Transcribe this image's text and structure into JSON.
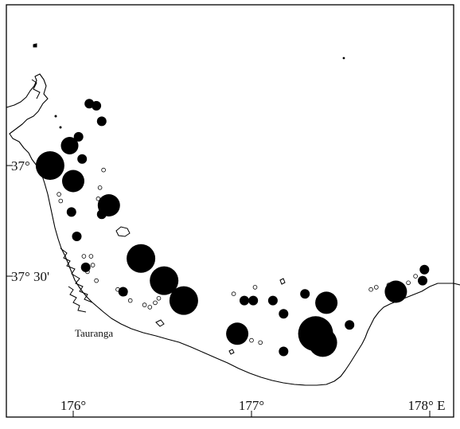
{
  "map": {
    "x_tick_labels": [
      "176°",
      "177°",
      "178° E"
    ],
    "y_tick_labels": [
      "37°",
      "37° 30'"
    ],
    "place_labels": [
      "Tauranga"
    ],
    "legend": null
  },
  "features": {
    "coastline": "Bay of Plenty coastline",
    "islands": "offshore islands"
  },
  "colors": {
    "filled_site": "#000000",
    "open_site": "#ffffff",
    "coast": "#000000",
    "frame": "#000000"
  },
  "sites": {
    "filled": [
      {
        "lon": 175.87,
        "lat": -37.0,
        "size": "xl"
      },
      {
        "lon": 176.0,
        "lat": -37.07,
        "size": "l"
      },
      {
        "lon": 175.98,
        "lat": -36.91,
        "size": "m"
      },
      {
        "lon": 176.2,
        "lat": -37.18,
        "size": "l"
      },
      {
        "lon": 176.38,
        "lat": -37.42,
        "size": "xl"
      },
      {
        "lon": 176.51,
        "lat": -37.52,
        "size": "xl"
      },
      {
        "lon": 176.62,
        "lat": -37.61,
        "size": "xl"
      },
      {
        "lon": 176.92,
        "lat": -37.76,
        "size": "l"
      },
      {
        "lon": 177.36,
        "lat": -37.76,
        "size": "xxl"
      },
      {
        "lon": 177.42,
        "lat": -37.62,
        "size": "l"
      },
      {
        "lon": 177.4,
        "lat": -37.8,
        "size": "xl"
      },
      {
        "lon": 177.81,
        "lat": -37.57,
        "size": "l"
      },
      {
        "lon": 176.09,
        "lat": -36.72,
        "size": "s"
      },
      {
        "lon": 176.13,
        "lat": -36.73,
        "size": "s"
      },
      {
        "lon": 176.16,
        "lat": -36.8,
        "size": "s"
      },
      {
        "lon": 176.03,
        "lat": -36.87,
        "size": "s"
      },
      {
        "lon": 176.05,
        "lat": -36.97,
        "size": "s"
      },
      {
        "lon": 175.99,
        "lat": -37.21,
        "size": "s"
      },
      {
        "lon": 176.02,
        "lat": -37.32,
        "size": "s"
      },
      {
        "lon": 176.07,
        "lat": -37.46,
        "size": "s"
      },
      {
        "lon": 176.16,
        "lat": -37.22,
        "size": "s"
      },
      {
        "lon": 176.28,
        "lat": -37.57,
        "size": "s"
      },
      {
        "lon": 176.96,
        "lat": -37.61,
        "size": "s"
      },
      {
        "lon": 177.01,
        "lat": -37.61,
        "size": "s"
      },
      {
        "lon": 177.12,
        "lat": -37.61,
        "size": "s"
      },
      {
        "lon": 177.18,
        "lat": -37.67,
        "size": "s"
      },
      {
        "lon": 177.3,
        "lat": -37.58,
        "size": "s"
      },
      {
        "lon": 177.55,
        "lat": -37.72,
        "size": "s"
      },
      {
        "lon": 177.96,
        "lat": -37.52,
        "size": "s"
      },
      {
        "lon": 177.97,
        "lat": -37.47,
        "size": "s"
      },
      {
        "lon": 177.18,
        "lat": -37.84,
        "size": "s"
      }
    ],
    "open": [
      {
        "lon": 176.17,
        "lat": -37.02
      },
      {
        "lon": 176.15,
        "lat": -37.1
      },
      {
        "lon": 176.14,
        "lat": -37.15
      },
      {
        "lon": 175.92,
        "lat": -37.13
      },
      {
        "lon": 175.93,
        "lat": -37.16
      },
      {
        "lon": 176.06,
        "lat": -37.41
      },
      {
        "lon": 176.1,
        "lat": -37.41
      },
      {
        "lon": 176.11,
        "lat": -37.45
      },
      {
        "lon": 176.08,
        "lat": -37.48
      },
      {
        "lon": 176.13,
        "lat": -37.52
      },
      {
        "lon": 176.25,
        "lat": -37.56
      },
      {
        "lon": 176.29,
        "lat": -37.58
      },
      {
        "lon": 176.32,
        "lat": -37.61
      },
      {
        "lon": 176.4,
        "lat": -37.63
      },
      {
        "lon": 176.43,
        "lat": -37.64
      },
      {
        "lon": 176.46,
        "lat": -37.62
      },
      {
        "lon": 176.48,
        "lat": -37.6
      },
      {
        "lon": 176.9,
        "lat": -37.58
      },
      {
        "lon": 177.02,
        "lat": -37.55
      },
      {
        "lon": 177.0,
        "lat": -37.79
      },
      {
        "lon": 177.05,
        "lat": -37.8
      },
      {
        "lon": 177.67,
        "lat": -37.56
      },
      {
        "lon": 177.7,
        "lat": -37.55
      },
      {
        "lon": 177.77,
        "lat": -37.54
      },
      {
        "lon": 177.88,
        "lat": -37.53
      },
      {
        "lon": 177.92,
        "lat": -37.5
      }
    ]
  }
}
